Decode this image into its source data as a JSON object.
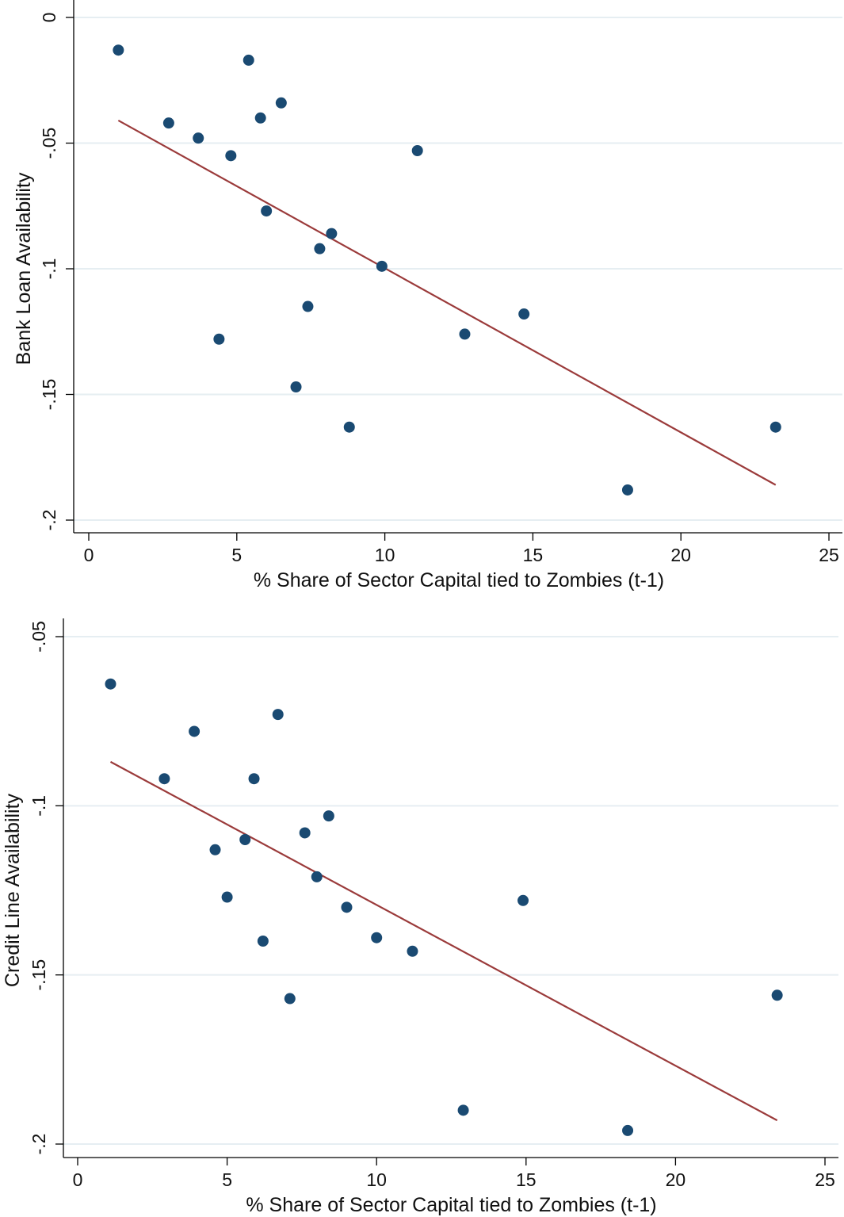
{
  "chart_data": [
    {
      "type": "scatter",
      "xlabel": "% Share of Sector Capital tied to Zombies (t-1)",
      "ylabel": "Bank Loan Availability",
      "xlim": [
        0,
        25
      ],
      "ylim": [
        -0.2,
        0
      ],
      "x_ticks": [
        0,
        5,
        10,
        15,
        20,
        25
      ],
      "x_tick_labels": [
        "0",
        "5",
        "10",
        "15",
        "20",
        "25"
      ],
      "y_ticks": [
        -0.2,
        -0.15,
        -0.1,
        -0.05,
        0
      ],
      "y_tick_labels": [
        "-.2",
        "-.15",
        "-.1",
        "-.05",
        "0"
      ],
      "grid": "horizontal",
      "points": [
        {
          "x": 1.0,
          "y": -0.013
        },
        {
          "x": 2.7,
          "y": -0.042
        },
        {
          "x": 3.7,
          "y": -0.048
        },
        {
          "x": 4.4,
          "y": -0.128
        },
        {
          "x": 4.8,
          "y": -0.055
        },
        {
          "x": 5.4,
          "y": -0.017
        },
        {
          "x": 5.8,
          "y": -0.04
        },
        {
          "x": 6.0,
          "y": -0.077
        },
        {
          "x": 6.5,
          "y": -0.034
        },
        {
          "x": 7.0,
          "y": -0.147
        },
        {
          "x": 7.4,
          "y": -0.115
        },
        {
          "x": 7.8,
          "y": -0.092
        },
        {
          "x": 8.2,
          "y": -0.086
        },
        {
          "x": 8.8,
          "y": -0.163
        },
        {
          "x": 9.9,
          "y": -0.099
        },
        {
          "x": 11.1,
          "y": -0.053
        },
        {
          "x": 12.7,
          "y": -0.126
        },
        {
          "x": 14.7,
          "y": -0.118
        },
        {
          "x": 18.2,
          "y": -0.188
        },
        {
          "x": 23.2,
          "y": -0.163
        }
      ],
      "fit_line": {
        "x": [
          1.0,
          23.2
        ],
        "y": [
          -0.041,
          -0.186
        ]
      },
      "point_color": "#1a4a72",
      "line_color": "#9b3b3b"
    },
    {
      "type": "scatter",
      "xlabel": "% Share of Sector Capital tied to Zombies (t-1)",
      "ylabel": "Credit Line Availability",
      "xlim": [
        0,
        25
      ],
      "ylim": [
        -0.2,
        -0.05
      ],
      "x_ticks": [
        0,
        5,
        10,
        15,
        20,
        25
      ],
      "x_tick_labels": [
        "0",
        "5",
        "10",
        "15",
        "20",
        "25"
      ],
      "y_ticks": [
        -0.2,
        -0.15,
        -0.1,
        -0.05
      ],
      "y_tick_labels": [
        "-.2",
        "-.15",
        "-.1",
        "-.05"
      ],
      "grid": "horizontal",
      "points": [
        {
          "x": 1.1,
          "y": -0.064
        },
        {
          "x": 2.9,
          "y": -0.092
        },
        {
          "x": 3.9,
          "y": -0.078
        },
        {
          "x": 4.6,
          "y": -0.113
        },
        {
          "x": 5.0,
          "y": -0.127
        },
        {
          "x": 5.6,
          "y": -0.11
        },
        {
          "x": 5.9,
          "y": -0.092
        },
        {
          "x": 6.2,
          "y": -0.14
        },
        {
          "x": 6.7,
          "y": -0.073
        },
        {
          "x": 7.1,
          "y": -0.157
        },
        {
          "x": 7.6,
          "y": -0.108
        },
        {
          "x": 8.0,
          "y": -0.121
        },
        {
          "x": 8.4,
          "y": -0.103
        },
        {
          "x": 9.0,
          "y": -0.13
        },
        {
          "x": 10.0,
          "y": -0.139
        },
        {
          "x": 11.2,
          "y": -0.143
        },
        {
          "x": 12.9,
          "y": -0.19
        },
        {
          "x": 14.9,
          "y": -0.128
        },
        {
          "x": 18.4,
          "y": -0.196
        },
        {
          "x": 23.4,
          "y": -0.156
        }
      ],
      "fit_line": {
        "x": [
          1.1,
          23.4
        ],
        "y": [
          -0.087,
          -0.193
        ]
      },
      "point_color": "#1a4a72",
      "line_color": "#9b3b3b"
    }
  ]
}
